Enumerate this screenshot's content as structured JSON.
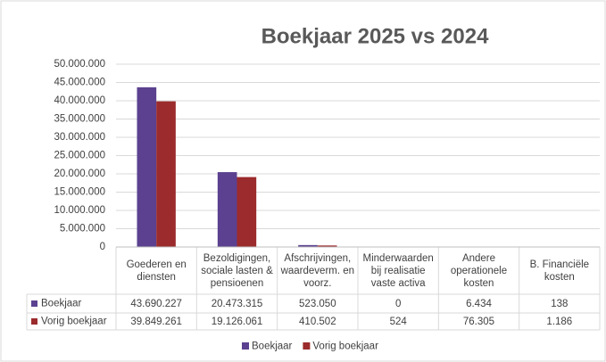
{
  "chart_data": {
    "type": "bar",
    "title": "Boekjaar 2025 vs 2024",
    "categories": [
      "Goederen en diensten",
      "Bezoldigingen, sociale lasten & pensioenen",
      "Afschrijvingen, waardeverm. en voorz.",
      "Minderwaarden bij realisatie vaste activa",
      "Andere operationele kosten",
      "B. Financiële kosten"
    ],
    "series": [
      {
        "name": "Boekjaar",
        "color": "#5b4190",
        "values": [
          43690227,
          20473315,
          523050,
          0,
          6434,
          138
        ],
        "value_labels": [
          "43.690.227",
          "20.473.315",
          "523.050",
          "0",
          "6.434",
          "138"
        ]
      },
      {
        "name": "Vorig boekjaar",
        "color": "#9b2b2c",
        "values": [
          39849261,
          19126061,
          410502,
          524,
          76305,
          1186
        ],
        "value_labels": [
          "39.849.261",
          "19.126.061",
          "410.502",
          "524",
          "76.305",
          "1.186"
        ]
      }
    ],
    "ylim": [
      0,
      50000000
    ],
    "yticks": [
      0,
      {
        "value": 5000000,
        "label": "5.000.000"
      },
      {
        "value": 10000000,
        "label": "10.000.000"
      },
      {
        "value": 15000000,
        "label": "15.000.000"
      },
      {
        "value": 20000000,
        "label": "20.000.000"
      },
      {
        "value": 25000000,
        "label": "25.000.000"
      },
      {
        "value": 30000000,
        "label": "30.000.000"
      },
      {
        "value": 35000000,
        "label": "35.000.000"
      },
      {
        "value": 40000000,
        "label": "40.000.000"
      },
      {
        "value": 45000000,
        "label": "45.000.000"
      },
      {
        "value": 50000000,
        "label": "50.000.000"
      }
    ],
    "grid": true,
    "legend": "bottom"
  }
}
